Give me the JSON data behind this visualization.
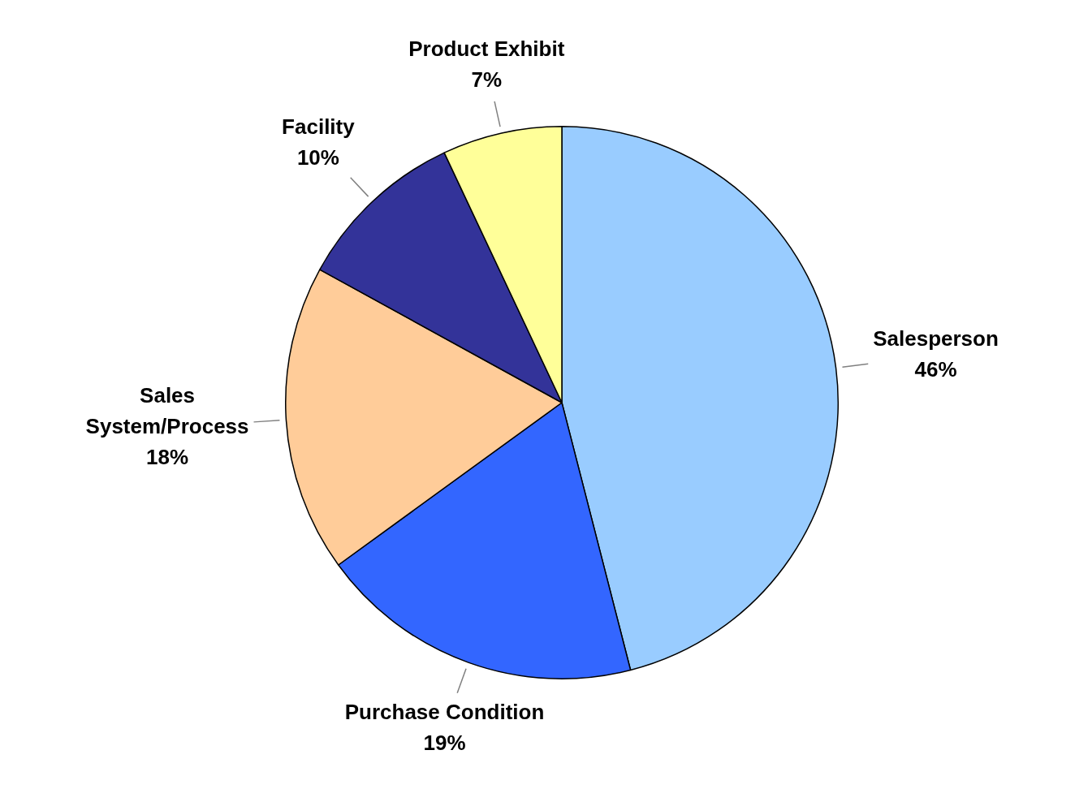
{
  "chart_data": {
    "type": "pie",
    "categories": [
      "Salesperson",
      "Purchase Condition",
      "Sales System/Process",
      "Facility",
      "Product Exhibit"
    ],
    "values": [
      46,
      19,
      18,
      10,
      7
    ],
    "colors": [
      "#99ccff",
      "#3366ff",
      "#ffcc99",
      "#333399",
      "#ffff99"
    ],
    "value_labels": [
      "46%",
      "19%",
      "18%",
      "10%",
      "7%"
    ]
  }
}
